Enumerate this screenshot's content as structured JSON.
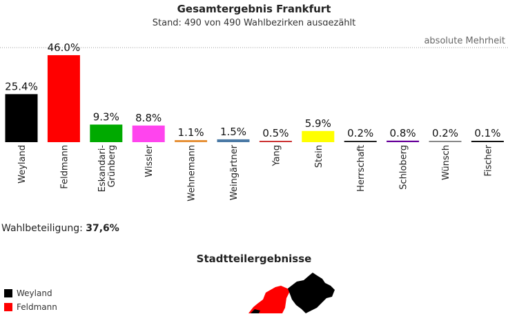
{
  "header": {
    "title": "Gesamtergebnis Frankfurt",
    "subtitle": "Stand: 490 von 490 Wahlbezirken ausgezählt"
  },
  "chart_data": {
    "type": "bar",
    "categories": [
      "Weyland",
      "Feldmann",
      "Eskandari-Grünberg",
      "Wissler",
      "Wehnemann",
      "Weingärtner",
      "Yang",
      "Stein",
      "Herrschaft",
      "Schloberg",
      "Wünsch",
      "Fischer"
    ],
    "category_lines": [
      [
        "Weyland"
      ],
      [
        "Feldmann"
      ],
      [
        "Eskandari-",
        "Grünberg"
      ],
      [
        "Wissler"
      ],
      [
        "Wehnemann"
      ],
      [
        "Weingärtner"
      ],
      [
        "Yang"
      ],
      [
        "Stein"
      ],
      [
        "Herrschaft"
      ],
      [
        "Schloberg"
      ],
      [
        "Wünsch"
      ],
      [
        "Fischer"
      ]
    ],
    "values": [
      25.4,
      46.0,
      9.3,
      8.8,
      1.1,
      1.5,
      0.5,
      5.9,
      0.2,
      0.8,
      0.2,
      0.1
    ],
    "labels": [
      "25.4%",
      "46.0%",
      "9.3%",
      "8.8%",
      "1.1%",
      "1.5%",
      "0.5%",
      "5.9%",
      "0.2%",
      "0.8%",
      "0.2%",
      "0.1%"
    ],
    "colors": [
      "#000000",
      "#ff0000",
      "#00aa00",
      "#ff44ee",
      "#e69138",
      "#4a79a5",
      "#cc3333",
      "#ffff00",
      "#222222",
      "#660099",
      "#888888",
      "#111111"
    ],
    "reference_line": {
      "value": 50,
      "label": "absolute Mehrheit"
    },
    "ylim": [
      0,
      50
    ],
    "xlabel": "",
    "ylabel": ""
  },
  "turnout": {
    "label": "Wahlbeteiligung:",
    "value": "37,6%"
  },
  "districts": {
    "title": "Stadtteilergebnisse",
    "legend": [
      {
        "name": "Weyland",
        "color": "#000000"
      },
      {
        "name": "Feldmann",
        "color": "#ff0000"
      }
    ]
  }
}
